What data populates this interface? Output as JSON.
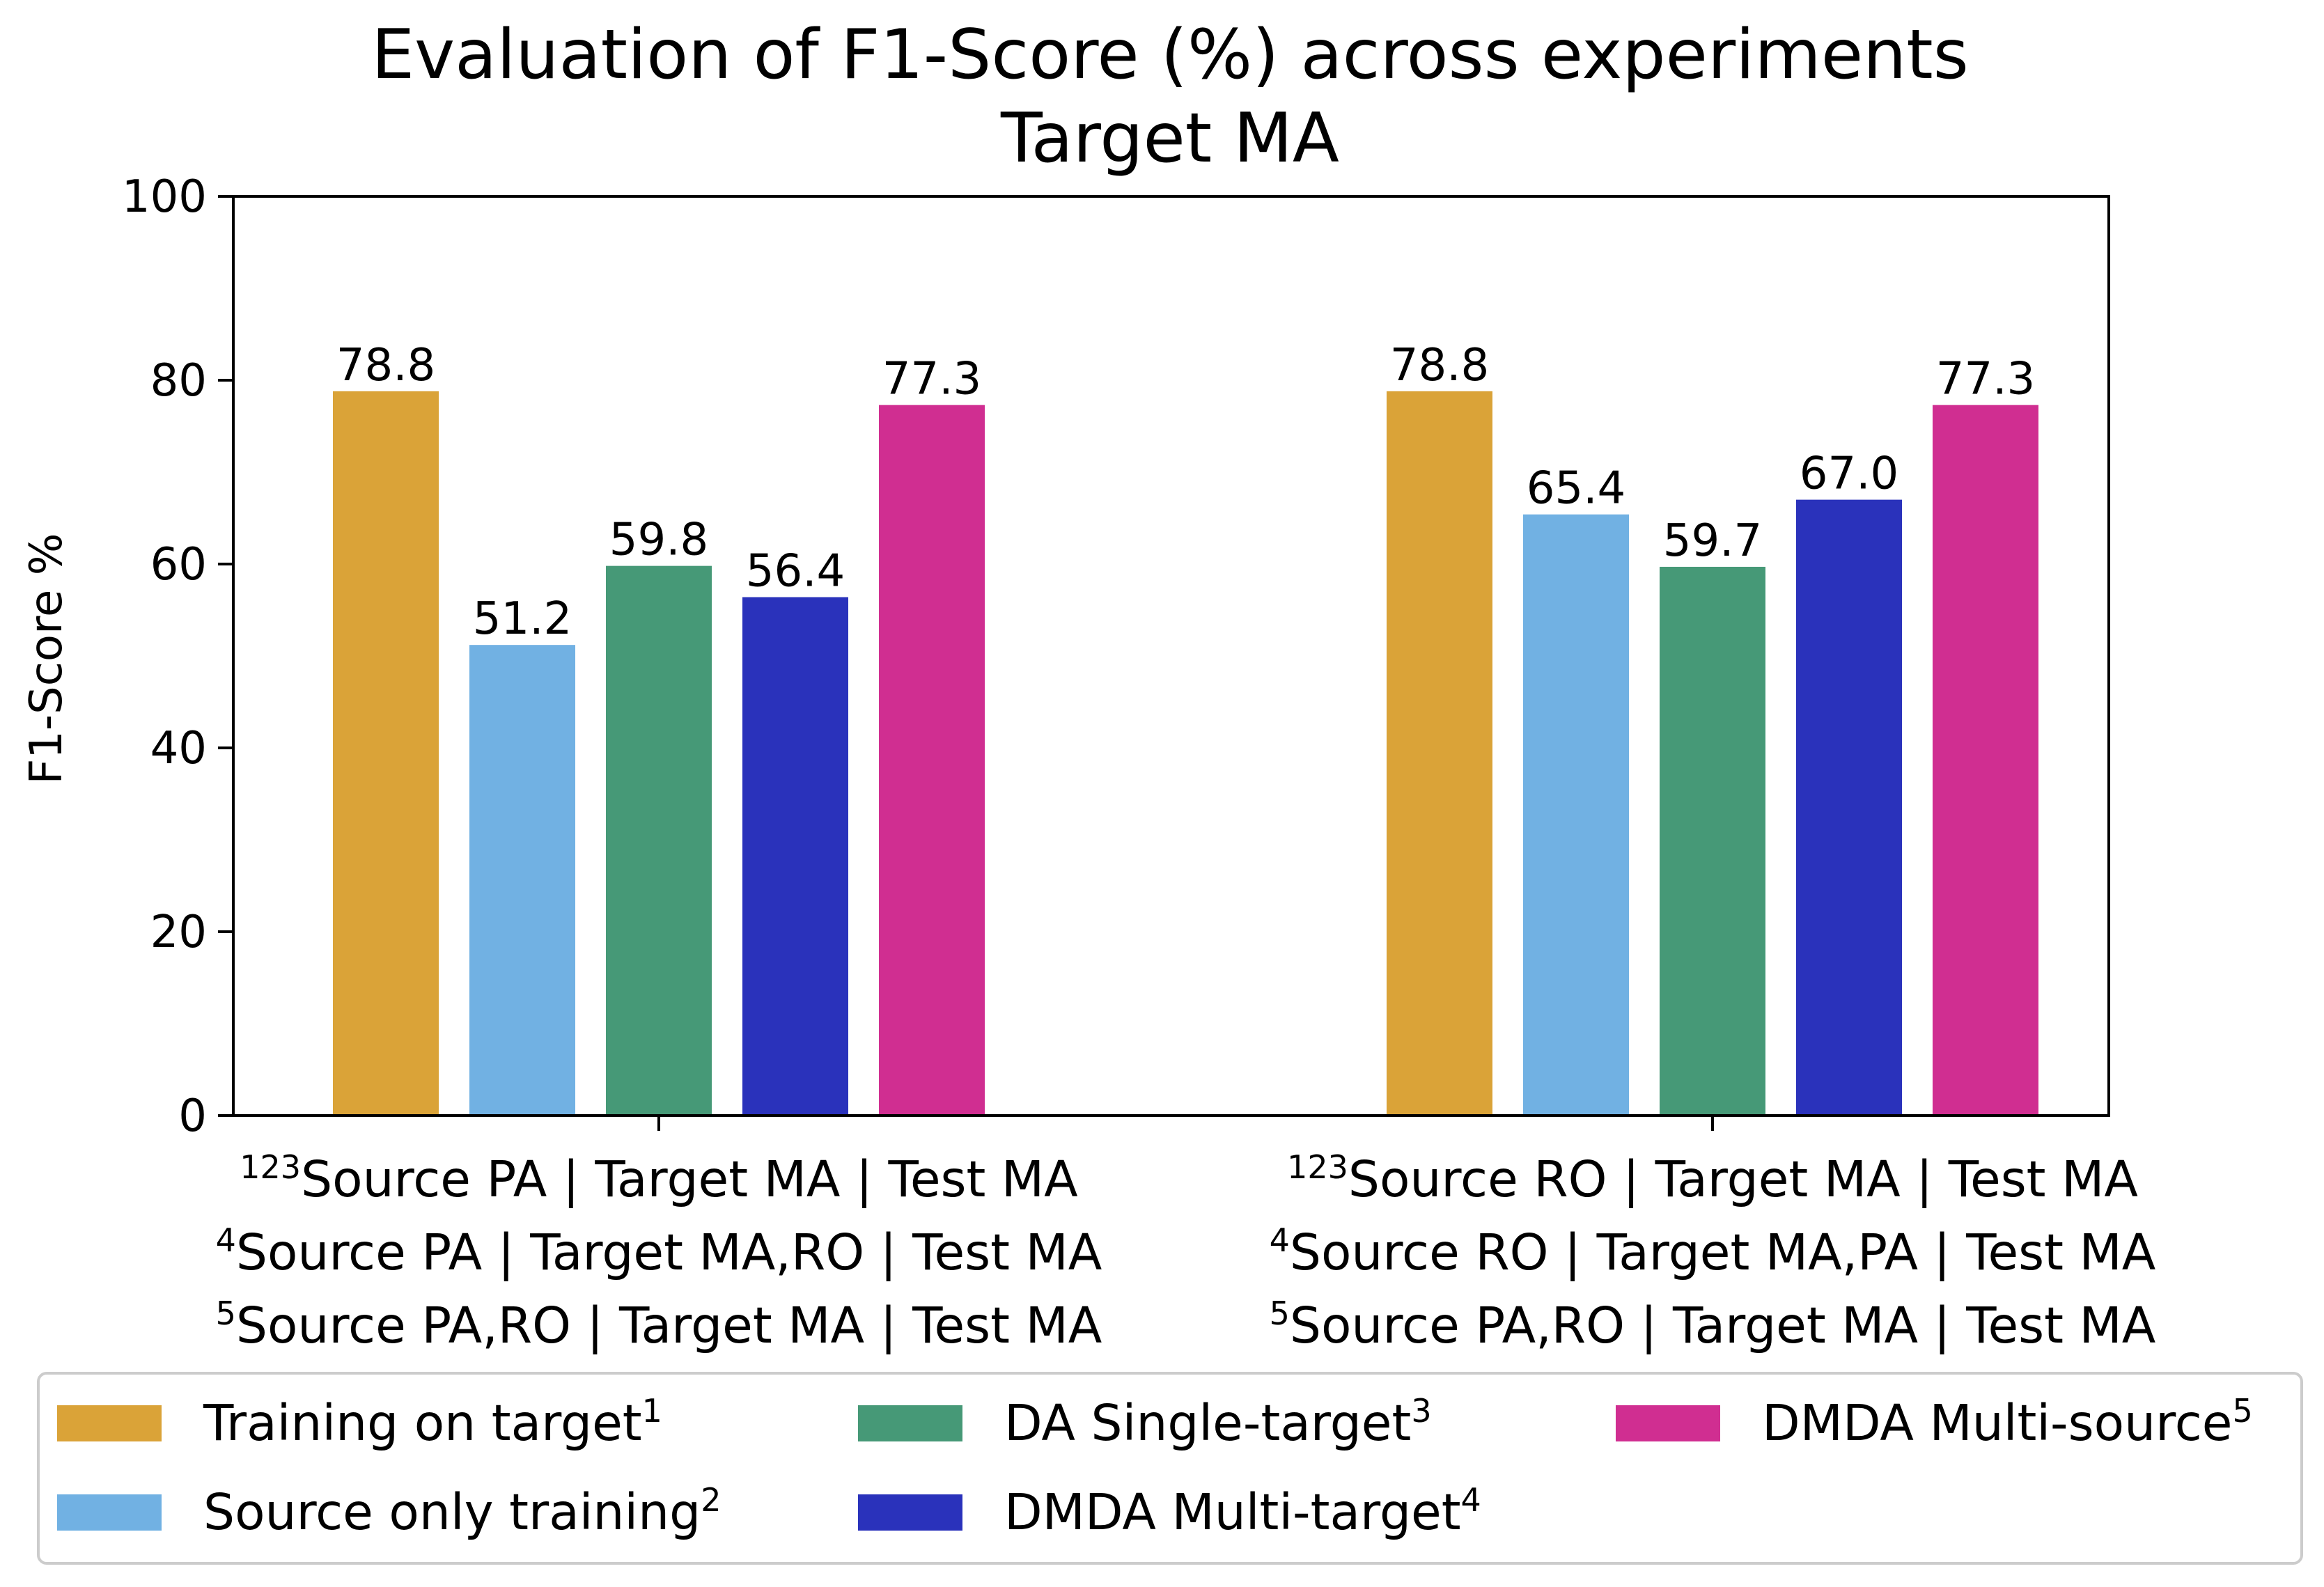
{
  "chart_data": {
    "type": "bar",
    "title": "Evaluation of F1-Score (%) across experiments",
    "subtitle": "Target MA",
    "xlabel": "",
    "ylabel": "F1-Score %",
    "ylim": [
      0,
      100
    ],
    "yticks": [
      0,
      20,
      40,
      60,
      80,
      100
    ],
    "grid": false,
    "legend_position": "bottom",
    "categories": [
      {
        "lines": [
          {
            "sup": "123",
            "text": "Source PA | Target MA | Test MA"
          },
          {
            "sup": "4",
            "text": "Source PA | Target MA,RO | Test MA"
          },
          {
            "sup": "5",
            "text": "Source PA,RO | Target MA | Test MA"
          }
        ]
      },
      {
        "lines": [
          {
            "sup": "123",
            "text": "Source RO | Target MA | Test MA"
          },
          {
            "sup": "4",
            "text": "Source RO | Target MA,PA | Test MA"
          },
          {
            "sup": "5",
            "text": "Source PA,RO | Target MA | Test MA"
          }
        ]
      }
    ],
    "series": [
      {
        "name": "Training on target",
        "sup": "1",
        "color": "#DAA338",
        "values": [
          78.8,
          78.8
        ]
      },
      {
        "name": "Source only training",
        "sup": "2",
        "color": "#71B1E3",
        "values": [
          51.2,
          65.4
        ]
      },
      {
        "name": "DA Single-target",
        "sup": "3",
        "color": "#469977",
        "values": [
          59.8,
          59.7
        ]
      },
      {
        "name": "DMDA Multi-target",
        "sup": "4",
        "color": "#2A32BB",
        "values": [
          56.4,
          67.0
        ]
      },
      {
        "name": "DMDA Multi-source",
        "sup": "5",
        "color": "#D02E91",
        "values": [
          77.3,
          77.3
        ]
      }
    ]
  }
}
